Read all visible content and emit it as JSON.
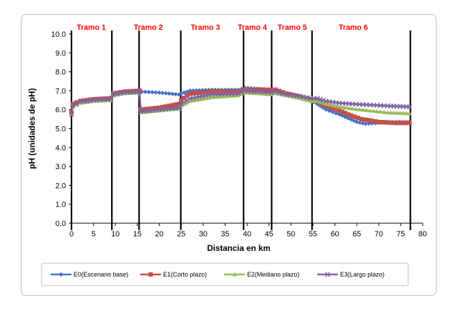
{
  "colors": {
    "E0": "#4472c4",
    "E1": "#c0504d",
    "E2": "#9bbb59",
    "E3": "#8064a2",
    "grid": "#000000",
    "tramo_text": "#ff0000"
  },
  "chart_data": {
    "type": "line",
    "xlabel": "Distancia en km",
    "ylabel": "pH (unidades de pH)",
    "xlim": [
      0,
      80
    ],
    "ylim": [
      0,
      10
    ],
    "x_ticks": [
      "0",
      "5",
      "10",
      "15",
      "20",
      "25",
      "30",
      "35",
      "40",
      "45",
      "50",
      "55",
      "60",
      "65",
      "70",
      "75",
      "80"
    ],
    "y_ticks": [
      "0.0",
      "1.0",
      "2.0",
      "3.0",
      "4.0",
      "5.0",
      "6.0",
      "7.0",
      "8.0",
      "9.0",
      "10.0"
    ],
    "grid": false,
    "legend_position": "bottom",
    "boundaries": [
      0,
      9.2,
      15.4,
      24.9,
      39.2,
      45.6,
      54.8,
      77.2
    ],
    "segments": [
      {
        "label": "Tramo 1",
        "x": 4.5
      },
      {
        "label": "Tramo 2",
        "x": 17.5
      },
      {
        "label": "Tramo 3",
        "x": 30.5
      },
      {
        "label": "Tramo 4",
        "x": 41.2
      },
      {
        "label": "Tramo 5",
        "x": 50.3
      },
      {
        "label": "Tramo 6",
        "x": 64.2
      }
    ],
    "series": [
      {
        "name": "E0(Escenario base)",
        "marker": "diamond",
        "points": [
          [
            0,
            5.8
          ],
          [
            0.3,
            6.3
          ],
          [
            2,
            6.45
          ],
          [
            5,
            6.55
          ],
          [
            9,
            6.6
          ],
          [
            9.5,
            6.85
          ],
          [
            12,
            6.95
          ],
          [
            16,
            6.95
          ],
          [
            20,
            6.9
          ],
          [
            24.5,
            6.8
          ],
          [
            25,
            6.85
          ],
          [
            27,
            7.0
          ],
          [
            32,
            7.05
          ],
          [
            38,
            7.05
          ],
          [
            39.5,
            7.15
          ],
          [
            43,
            7.1
          ],
          [
            45.5,
            7.05
          ],
          [
            46.5,
            7.0
          ],
          [
            49,
            6.85
          ],
          [
            52,
            6.7
          ],
          [
            54.5,
            6.5
          ],
          [
            56,
            6.3
          ],
          [
            58,
            6.0
          ],
          [
            61,
            5.75
          ],
          [
            63,
            5.55
          ],
          [
            65,
            5.35
          ],
          [
            67,
            5.25
          ],
          [
            70,
            5.3
          ],
          [
            74,
            5.35
          ],
          [
            77,
            5.35
          ]
        ]
      },
      {
        "name": "E1(Corto plazo)",
        "marker": "square",
        "points": [
          [
            0,
            5.85
          ],
          [
            0.3,
            6.3
          ],
          [
            2,
            6.45
          ],
          [
            5,
            6.55
          ],
          [
            9,
            6.6
          ],
          [
            9.5,
            6.85
          ],
          [
            12,
            6.95
          ],
          [
            15.5,
            7.0
          ],
          [
            15.8,
            6.0
          ],
          [
            20,
            6.1
          ],
          [
            24.5,
            6.3
          ],
          [
            25,
            6.5
          ],
          [
            27,
            6.85
          ],
          [
            32,
            6.95
          ],
          [
            38,
            6.95
          ],
          [
            39.5,
            7.05
          ],
          [
            43,
            7.05
          ],
          [
            45.5,
            7.05
          ],
          [
            46.5,
            7.05
          ],
          [
            49,
            6.85
          ],
          [
            52,
            6.7
          ],
          [
            54.5,
            6.55
          ],
          [
            56,
            6.45
          ],
          [
            58,
            6.2
          ],
          [
            61,
            5.95
          ],
          [
            63,
            5.75
          ],
          [
            66,
            5.5
          ],
          [
            70,
            5.35
          ],
          [
            74,
            5.3
          ],
          [
            77,
            5.3
          ]
        ]
      },
      {
        "name": "E2(Mediano plazo)",
        "marker": "triangle",
        "points": [
          [
            0,
            5.75
          ],
          [
            0.3,
            6.15
          ],
          [
            2,
            6.35
          ],
          [
            5,
            6.45
          ],
          [
            9,
            6.5
          ],
          [
            9.5,
            6.75
          ],
          [
            12,
            6.85
          ],
          [
            15.5,
            6.9
          ],
          [
            15.8,
            5.85
          ],
          [
            20,
            5.95
          ],
          [
            24.5,
            6.05
          ],
          [
            25,
            6.2
          ],
          [
            27,
            6.45
          ],
          [
            32,
            6.65
          ],
          [
            38,
            6.75
          ],
          [
            39.5,
            6.9
          ],
          [
            43,
            6.85
          ],
          [
            45.5,
            6.8
          ],
          [
            46.5,
            6.85
          ],
          [
            49,
            6.75
          ],
          [
            52,
            6.6
          ],
          [
            54.5,
            6.45
          ],
          [
            56,
            6.45
          ],
          [
            58,
            6.3
          ],
          [
            61,
            6.15
          ],
          [
            64,
            6.05
          ],
          [
            68,
            5.95
          ],
          [
            72,
            5.85
          ],
          [
            77,
            5.8
          ]
        ]
      },
      {
        "name": "E3(Largo plazo)",
        "marker": "x",
        "points": [
          [
            0,
            5.75
          ],
          [
            0.3,
            6.2
          ],
          [
            2,
            6.4
          ],
          [
            5,
            6.5
          ],
          [
            9,
            6.55
          ],
          [
            9.5,
            6.8
          ],
          [
            12,
            6.9
          ],
          [
            15.5,
            6.95
          ],
          [
            15.8,
            5.9
          ],
          [
            20,
            6.0
          ],
          [
            24.5,
            6.1
          ],
          [
            25,
            6.3
          ],
          [
            27,
            6.6
          ],
          [
            32,
            6.8
          ],
          [
            38,
            6.85
          ],
          [
            39.5,
            7.0
          ],
          [
            43,
            6.95
          ],
          [
            45.5,
            6.9
          ],
          [
            46.5,
            6.95
          ],
          [
            49,
            6.8
          ],
          [
            52,
            6.7
          ],
          [
            54.5,
            6.6
          ],
          [
            56,
            6.6
          ],
          [
            58,
            6.45
          ],
          [
            61,
            6.35
          ],
          [
            64,
            6.3
          ],
          [
            68,
            6.25
          ],
          [
            72,
            6.2
          ],
          [
            77,
            6.15
          ]
        ]
      }
    ]
  }
}
